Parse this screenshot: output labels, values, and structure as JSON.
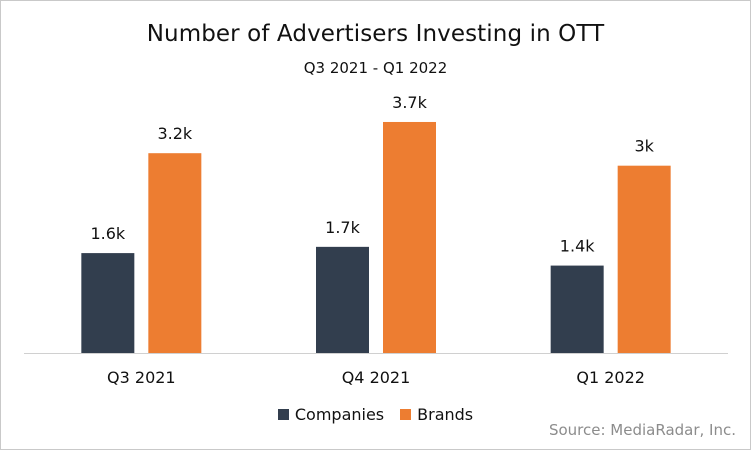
{
  "chart_data": {
    "type": "bar",
    "title": "Number of Advertisers Investing in OTT",
    "subtitle": "Q3 2021 - Q1 2022",
    "categories": [
      "Q3 2021",
      "Q4 2021",
      "Q1 2022"
    ],
    "series": [
      {
        "name": "Companies",
        "color": "#323e4e",
        "values": [
          1.6,
          1.7,
          1.4
        ],
        "labels": [
          "1.6k",
          "1.7k",
          "1.4k"
        ]
      },
      {
        "name": "Brands",
        "color": "#ed7d31",
        "values": [
          3.2,
          3.7,
          3.0
        ],
        "labels": [
          "3.2k",
          "3.7k",
          "3k"
        ]
      }
    ],
    "xlabel": "",
    "ylabel": "",
    "ylim": [
      0,
      4.1
    ],
    "grid": false,
    "legend_position": "bottom",
    "source": "Source: MediaRadar, Inc."
  }
}
